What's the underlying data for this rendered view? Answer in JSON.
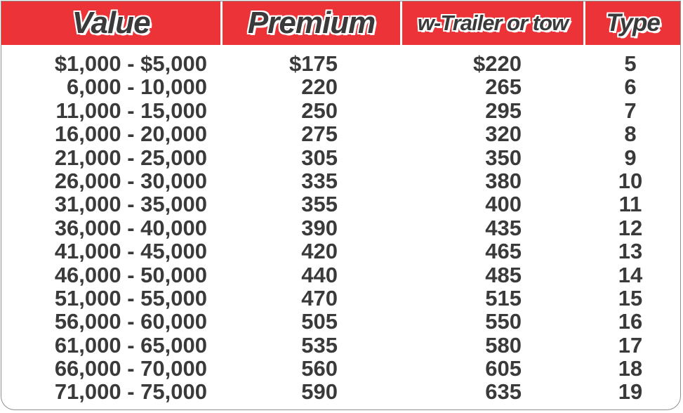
{
  "table": {
    "headers": {
      "value": "Value",
      "premium": "Premium",
      "trailer": "w-Trailer or tow",
      "type": "Type"
    },
    "rows": [
      {
        "value": "$1,000 - $5,000",
        "premium": "$175",
        "trailer": "$220",
        "type": "5"
      },
      {
        "value": "6,000 - 10,000",
        "premium": "220",
        "trailer": "265",
        "type": "6"
      },
      {
        "value": "11,000 - 15,000",
        "premium": "250",
        "trailer": "295",
        "type": "7"
      },
      {
        "value": "16,000 - 20,000",
        "premium": "275",
        "trailer": "320",
        "type": "8"
      },
      {
        "value": "21,000 - 25,000",
        "premium": "305",
        "trailer": "350",
        "type": "9"
      },
      {
        "value": "26,000 - 30,000",
        "premium": "335",
        "trailer": "380",
        "type": "10"
      },
      {
        "value": "31,000 - 35,000",
        "premium": "355",
        "trailer": "400",
        "type": "11"
      },
      {
        "value": "36,000 - 40,000",
        "premium": "390",
        "trailer": "435",
        "type": "12"
      },
      {
        "value": "41,000 - 45,000",
        "premium": "420",
        "trailer": "465",
        "type": "13"
      },
      {
        "value": "46,000 - 50,000",
        "premium": "440",
        "trailer": "485",
        "type": "14"
      },
      {
        "value": "51,000 - 55,000",
        "premium": "470",
        "trailer": "515",
        "type": "15"
      },
      {
        "value": "56,000 - 60,000",
        "premium": "505",
        "trailer": "550",
        "type": "16"
      },
      {
        "value": "61,000 - 65,000",
        "premium": "535",
        "trailer": "580",
        "type": "17"
      },
      {
        "value": "66,000 - 70,000",
        "premium": "560",
        "trailer": "605",
        "type": "18"
      },
      {
        "value": "71,000 - 75,000",
        "premium": "590",
        "trailer": "635",
        "type": "19"
      }
    ]
  },
  "colors": {
    "header_background": "#ec3338",
    "text": "#3a3a3a",
    "border": "#8e8e8e"
  }
}
